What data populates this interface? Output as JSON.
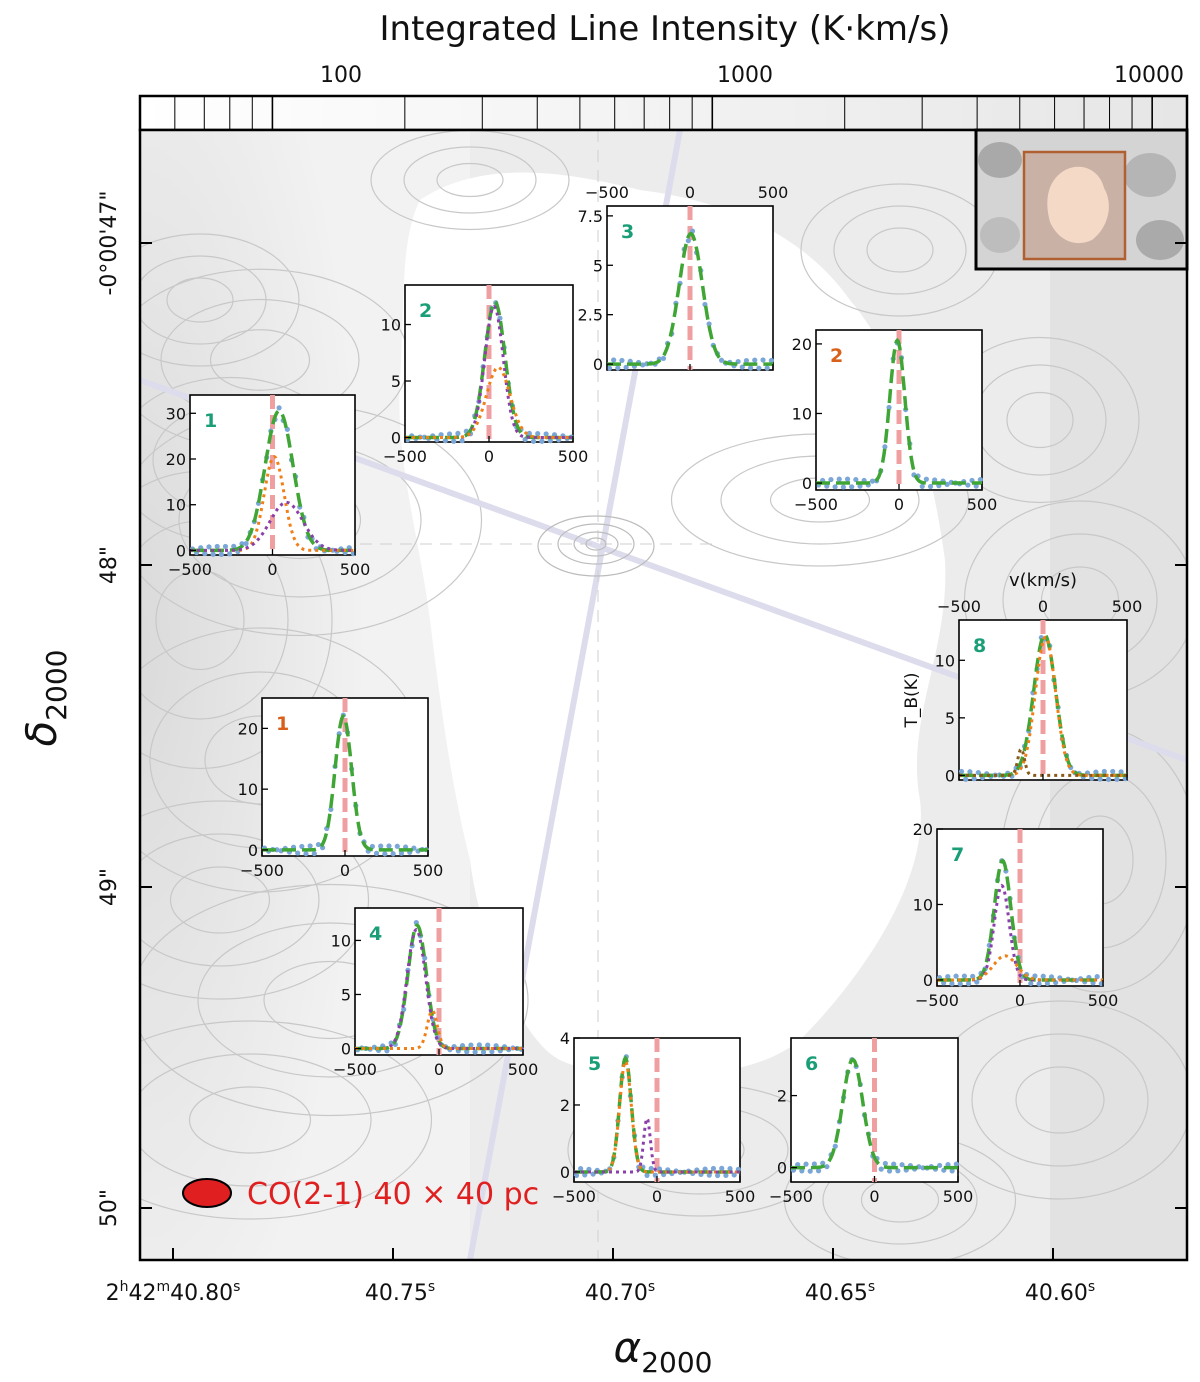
{
  "colorbar": {
    "title": "Integrated Line Intensity (K·km/s)",
    "scale": "log",
    "range": [
      50,
      12000
    ],
    "tick_labels": [
      "100",
      "1000",
      "10000"
    ],
    "tick_values": [
      100,
      1000,
      10000
    ]
  },
  "map": {
    "ra_label": "α",
    "ra_sub": "2000",
    "dec_label": "δ",
    "dec_sub": "2000",
    "ra_ticks": [
      {
        "h": "2",
        "m": "42",
        "s": "40.80",
        "label_main": "40.80"
      },
      {
        "label_main": "40.75"
      },
      {
        "label_main": "40.70"
      },
      {
        "label_main": "40.65"
      },
      {
        "label_main": "40.60"
      }
    ],
    "ra_tick_prefix_h": "2",
    "ra_tick_prefix_m": "42",
    "sec_symbol": "s",
    "dec_ticks": [
      "-0°00′47″",
      "48″",
      "49″",
      "50″"
    ],
    "dec_tick_first": "-0°00'47\"",
    "dec_tick_48": "48\"",
    "dec_tick_49": "49\"",
    "dec_tick_50": "50\"",
    "beam_label": "CO(2-1) 40 × 40 pc",
    "colors": {
      "beam": "#e02020",
      "beam_text": "#e02020",
      "contour": "#c8c8c8"
    }
  },
  "chart_data": [
    {
      "type": "line",
      "panel": "1",
      "label_color": "#1a9e77",
      "xlim": [
        -500,
        500
      ],
      "ylim": [
        -1,
        34
      ],
      "yticks": [
        0,
        10,
        20,
        30
      ],
      "xticks": [
        -500,
        0,
        500
      ],
      "components": [
        {
          "name": "total",
          "amp": 30.5,
          "center": 40,
          "sigma": 85
        },
        {
          "name": "comp_orange",
          "amp": 20.5,
          "center": 10,
          "sigma": 60
        },
        {
          "name": "comp_purple",
          "amp": 10.5,
          "center": 85,
          "sigma": 100
        }
      ]
    },
    {
      "type": "line",
      "panel": "2",
      "label_color": "#1a9e77",
      "xlim": [
        -500,
        500
      ],
      "ylim": [
        -0.4,
        13.5
      ],
      "yticks": [
        0,
        5,
        10
      ],
      "xticks": [
        -500,
        0,
        500
      ],
      "components": [
        {
          "name": "total",
          "amp": 12.0,
          "center": 35,
          "sigma": 60
        },
        {
          "name": "comp_purple",
          "amp": 11.6,
          "center": 30,
          "sigma": 55
        },
        {
          "name": "comp_orange",
          "amp": 6.2,
          "center": 55,
          "sigma": 70
        }
      ]
    },
    {
      "type": "line",
      "panel": "3",
      "label_color": "#1a9e77",
      "xlim": [
        -500,
        500
      ],
      "ylim": [
        -0.3,
        8.0
      ],
      "yticks": [
        0.0,
        2.5,
        5.0,
        7.5
      ],
      "xticks": [
        -500,
        0,
        500
      ],
      "components": [
        {
          "name": "total",
          "amp": 6.6,
          "center": 5,
          "sigma": 70
        }
      ]
    },
    {
      "type": "line",
      "panel": "2",
      "label_color": "#d9601a",
      "xlim": [
        -500,
        500
      ],
      "ylim": [
        -1,
        22
      ],
      "yticks": [
        0,
        10,
        20
      ],
      "xticks": [
        -500,
        0,
        500
      ],
      "components": [
        {
          "name": "total",
          "amp": 20.5,
          "center": -10,
          "sigma": 45
        }
      ]
    },
    {
      "type": "line",
      "panel": "1",
      "label_color": "#d9601a",
      "xlim": [
        -500,
        500
      ],
      "ylim": [
        -1,
        25
      ],
      "yticks": [
        0,
        10,
        20
      ],
      "xticks": [
        -500,
        0,
        500
      ],
      "components": [
        {
          "name": "total",
          "amp": 22.0,
          "center": -10,
          "sigma": 50
        }
      ]
    },
    {
      "type": "line",
      "panel": "8",
      "label_color": "#1a9e77",
      "xlim": [
        -500,
        500
      ],
      "ylim": [
        -0.4,
        13.5
      ],
      "yticks": [
        0,
        5,
        10
      ],
      "xticks": [
        -500,
        0,
        500
      ],
      "x_label": "v(km/s)",
      "y_label": "T_B(K)",
      "components": [
        {
          "name": "total",
          "amp": 12.2,
          "center": 10,
          "sigma": 65
        },
        {
          "name": "comp_orange",
          "amp": 12.0,
          "center": 15,
          "sigma": 60
        },
        {
          "name": "comp_brown",
          "amp": 2.3,
          "center": -130,
          "sigma": 20
        }
      ]
    },
    {
      "type": "line",
      "panel": "7",
      "label_color": "#1a9e77",
      "xlim": [
        -500,
        500
      ],
      "ylim": [
        -0.8,
        20
      ],
      "yticks": [
        0,
        10,
        20
      ],
      "xticks": [
        -500,
        0,
        500
      ],
      "components": [
        {
          "name": "total",
          "amp": 15.8,
          "center": -105,
          "sigma": 50
        },
        {
          "name": "comp_purple",
          "amp": 12.5,
          "center": -110,
          "sigma": 45
        },
        {
          "name": "comp_orange",
          "amp": 3.2,
          "center": -90,
          "sigma": 70
        }
      ]
    },
    {
      "type": "line",
      "panel": "4",
      "label_color": "#1a9e77",
      "xlim": [
        -500,
        500
      ],
      "ylim": [
        -0.6,
        13
      ],
      "yticks": [
        0,
        5,
        10
      ],
      "xticks": [
        -500,
        0,
        500
      ],
      "components": [
        {
          "name": "total",
          "amp": 11.4,
          "center": -130,
          "sigma": 55
        },
        {
          "name": "comp_purple",
          "amp": 11.0,
          "center": -135,
          "sigma": 55
        },
        {
          "name": "comp_orange",
          "amp": 3.5,
          "center": -40,
          "sigma": 30
        }
      ]
    },
    {
      "type": "line",
      "panel": "5",
      "label_color": "#1a9e77",
      "xlim": [
        -500,
        500
      ],
      "ylim": [
        -0.3,
        4.0
      ],
      "yticks": [
        0,
        2,
        4
      ],
      "xticks": [
        -500,
        0,
        500
      ],
      "components": [
        {
          "name": "total",
          "amp": 3.4,
          "center": -190,
          "sigma": 35
        },
        {
          "name": "comp_orange",
          "amp": 3.3,
          "center": -190,
          "sigma": 35
        },
        {
          "name": "comp_purple",
          "amp": 1.6,
          "center": -60,
          "sigma": 20
        }
      ]
    },
    {
      "type": "line",
      "panel": "6",
      "label_color": "#1a9e77",
      "xlim": [
        -500,
        500
      ],
      "ylim": [
        -0.4,
        3.6
      ],
      "yticks": [
        0,
        2
      ],
      "xticks": [
        -500,
        0,
        500
      ],
      "components": [
        {
          "name": "total",
          "amp": 3.0,
          "center": -130,
          "sigma": 60
        }
      ]
    }
  ]
}
